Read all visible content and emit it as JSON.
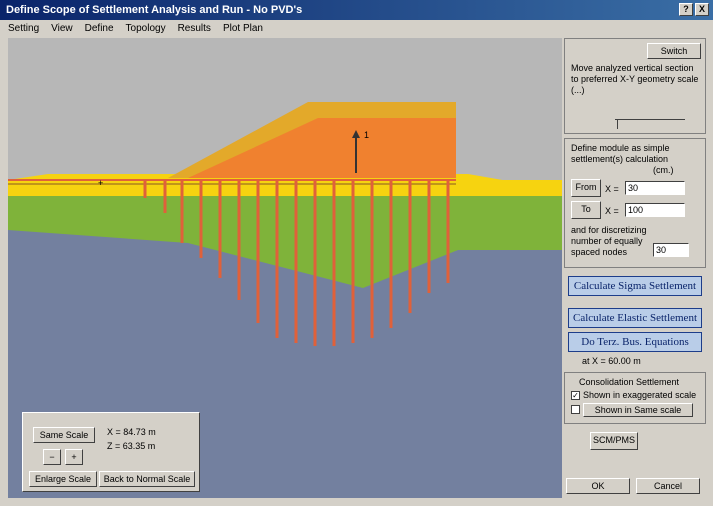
{
  "window": {
    "title": "Define Scope of Settlement Analysis and Run - No PVD's"
  },
  "titlebar_buttons": [
    "?",
    "X"
  ],
  "menu": [
    "Setting",
    "View",
    "Define",
    "Topology",
    "Results",
    "Plot Plan"
  ],
  "colors": {
    "sky": "#b7b7b7",
    "fill_top": "#e3a92a",
    "fill_core": "#f0812f",
    "sand": "#f6d310",
    "clay": "#7fb33a",
    "soft_clay": "#73809f",
    "drain": "#e0613a"
  },
  "canvas": {
    "load_label": "1",
    "cursor_label": "+"
  },
  "scale_panel": {
    "same_scale": "Same Scale",
    "minus": "−",
    "plus": "+",
    "x_readout": "X = 84.73 m",
    "z_readout": "Z = 63.35 m",
    "enlarge_scale": "Enlarge Scale",
    "back_to_normal": "Back to Normal Scale"
  },
  "right_panel": {
    "switch_label": "Switch",
    "section_text": "Move analyzed vertical section to preferred X-Y geometry scale (...)",
    "define_text": "Define module as simple settlement(s) calculation",
    "units": "(cm.)",
    "from_label": "From",
    "to_label": "To",
    "x_label": "X =",
    "from_value": "30",
    "to_value": "100",
    "interval_text": "and for discretizing number of equally spaced nodes",
    "nodes_value": "30",
    "calc_sigma": "Calculate Sigma Settlement",
    "calc_elastic": "Calculate Elastic Settlement",
    "terzaghi": "Do Terz. Bus. Equations",
    "at_text": "at  X = 60.00 m",
    "consolidation_title": "Consolidation Settlement",
    "chk1_label": "Shown in exaggerated scale",
    "chk2_label": "Shown in Same scale",
    "scm_label": "SCM/PMS",
    "ok_label": "OK",
    "cancel_label": "Cancel"
  }
}
